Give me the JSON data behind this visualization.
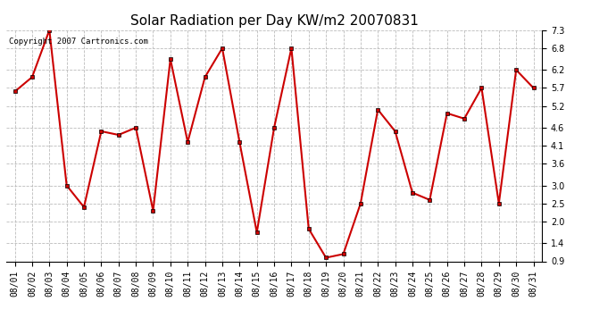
{
  "title": "Solar Radiation per Day KW/m2 20070831",
  "copyright_text": "Copyright 2007 Cartronics.com",
  "dates": [
    "08/01",
    "08/02",
    "08/03",
    "08/04",
    "08/05",
    "08/06",
    "08/07",
    "08/08",
    "08/09",
    "08/10",
    "08/11",
    "08/12",
    "08/13",
    "08/14",
    "08/15",
    "08/16",
    "08/17",
    "08/18",
    "08/19",
    "08/20",
    "08/21",
    "08/22",
    "08/23",
    "08/24",
    "08/25",
    "08/26",
    "08/27",
    "08/28",
    "08/29",
    "08/30",
    "08/31"
  ],
  "values": [
    5.6,
    6.0,
    7.3,
    3.0,
    2.4,
    4.5,
    4.4,
    4.6,
    2.3,
    6.5,
    4.2,
    6.0,
    6.8,
    4.2,
    1.7,
    4.6,
    6.8,
    1.8,
    1.0,
    1.1,
    2.5,
    5.1,
    4.5,
    2.8,
    2.6,
    5.0,
    4.85,
    5.7,
    2.5,
    6.2,
    5.7
  ],
  "line_color": "#cc0000",
  "marker_color": "#cc0000",
  "marker_size": 3,
  "line_width": 1.5,
  "ylim": [
    0.9,
    7.3
  ],
  "yticks": [
    0.9,
    1.4,
    2.0,
    2.5,
    3.0,
    3.6,
    4.1,
    4.6,
    5.2,
    5.7,
    6.2,
    6.8,
    7.3
  ],
  "grid_color": "#bbbbbb",
  "grid_style": "--",
  "bg_color": "#ffffff",
  "plot_bg_color": "#ffffff",
  "title_fontsize": 11,
  "tick_fontsize": 7,
  "copyright_fontsize": 6.5
}
